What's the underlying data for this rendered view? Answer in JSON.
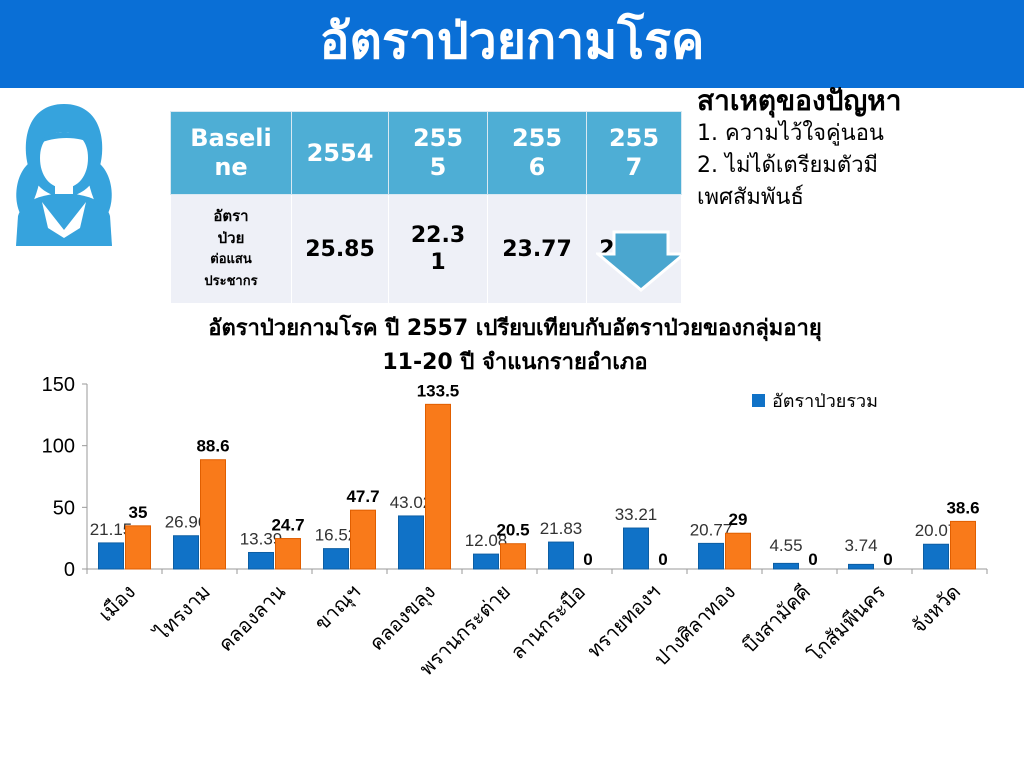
{
  "header": {
    "title": "อัตราป่วยกามโรค"
  },
  "table": {
    "columns": [
      "Baseline",
      "2554",
      "2555",
      "2556",
      "2557"
    ],
    "column_display": [
      "Baseli\nne",
      "2554",
      "255\n5",
      "255\n6",
      "255\n7"
    ],
    "row_label": [
      "อัตรา",
      "ป่วย",
      "ต่อแสน",
      "ประชากร"
    ],
    "values": [
      "25.85",
      "22.31",
      "23.77",
      "23.73"
    ],
    "values_display": [
      "25.85",
      "22.3\n1",
      "23.77",
      "23.73"
    ]
  },
  "causes": {
    "heading": "สาเหตุของปัญหา",
    "items": [
      "1.  ความไว้ใจคู่นอน",
      "2. ไม่ได้เตรียมตัวมี",
      "เพศสัมพันธ์"
    ]
  },
  "colors": {
    "banner": "#0a6fd6",
    "series_total": "#1072c7",
    "series_age": "#f97a1a",
    "table_header": "#4eaed5"
  },
  "icons": {
    "avatar": "girl-avatar-icon",
    "arrow": "down-arrow-icon"
  },
  "chart_data": {
    "type": "bar",
    "title": "อัตราป่วยกามโรค ปี 2557 เปรียบเทียบกับอัตราป่วยของกลุ่มอายุ 11-20 ปี จำแนกรายอำเภอ",
    "title_lines": [
      "อัตราป่วยกามโรค ปี 2557 เปรียบเทียบกับอัตราป่วยของกลุ่มอายุ",
      "11-20 ปี จำแนกรายอำเภอ"
    ],
    "categories": [
      "เมือง",
      "ไทรงาม",
      "คลองลาน",
      "ขาณุฯ",
      "คลองขลุง",
      "พรานกระต่าย",
      "ลานกระบือ",
      "ทรายทองฯ",
      "ปางศิลาทอง",
      "บึงสามัคคี",
      "โกสัมพีนคร",
      "จังหวัด"
    ],
    "series": [
      {
        "name": "อัตราป่วยรวม",
        "values": [
          21.15,
          26.96,
          13.39,
          16.52,
          43.02,
          12.08,
          21.83,
          33.21,
          20.77,
          4.55,
          3.74,
          20.07
        ],
        "labels": [
          "21.15",
          "26.96",
          "13.39",
          "16.52",
          "43.02",
          "12.08",
          "21.83",
          "33.21",
          "20.77",
          "4.55",
          "3.74",
          "20.07"
        ]
      },
      {
        "values": [
          35,
          88.6,
          24.7,
          47.7,
          133.5,
          20.5,
          0,
          0,
          29,
          0,
          0,
          38.6
        ],
        "labels": [
          "35",
          "88.6",
          "24.7",
          "47.7",
          "133.5",
          "20.5",
          "0",
          "0",
          "29",
          "0",
          "0",
          "38.6"
        ]
      }
    ],
    "y_ticks": [
      "0",
      "50",
      "100",
      "150"
    ],
    "ylim": [
      0,
      150
    ],
    "xlabel": "",
    "ylabel": "",
    "grid": false,
    "legend": "top-right"
  }
}
